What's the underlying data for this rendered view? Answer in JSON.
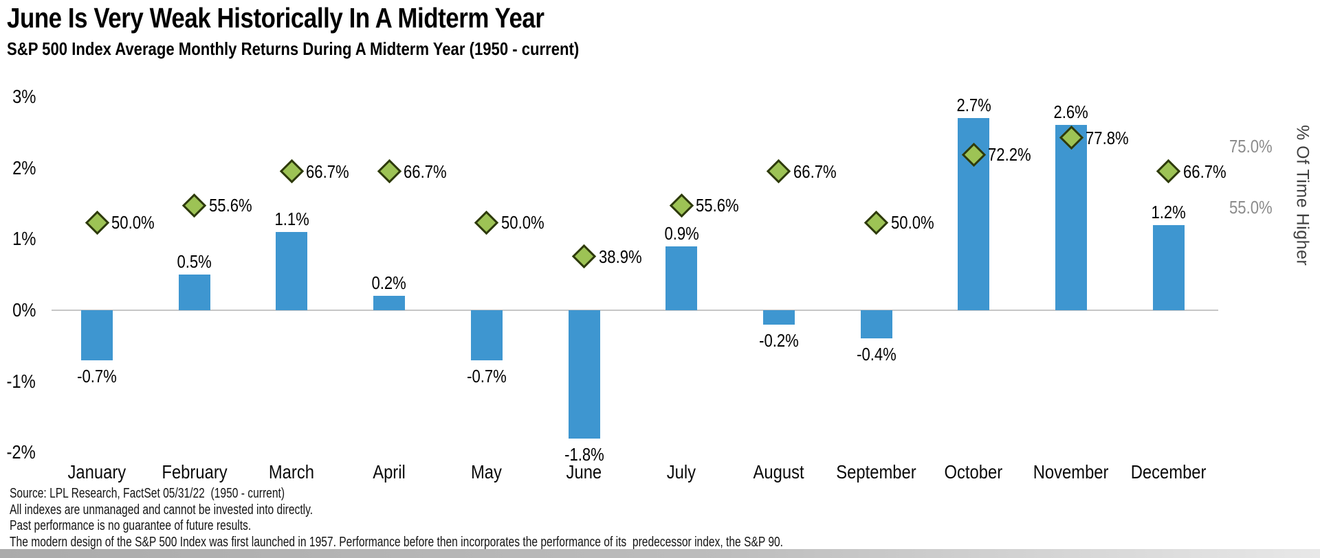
{
  "title": "June Is Very Weak Historically In A Midterm Year",
  "subtitle": "S&P 500 Index Average Monthly Returns During A Midterm Year (1950 - current)",
  "chart_data": {
    "type": "bar",
    "categories": [
      "January",
      "February",
      "March",
      "April",
      "May",
      "June",
      "July",
      "August",
      "September",
      "October",
      "November",
      "December"
    ],
    "series": [
      {
        "name": "Average monthly return",
        "type": "bar",
        "color": "#3E96D0",
        "values": [
          -0.7,
          0.5,
          1.1,
          0.2,
          -0.7,
          -1.8,
          0.9,
          -0.2,
          -0.4,
          2.7,
          2.6,
          1.2
        ],
        "labels": [
          "-0.7%",
          "0.5%",
          "1.1%",
          "0.2%",
          "-0.7%",
          "-1.8%",
          "0.9%",
          "-0.2%",
          "-0.4%",
          "2.7%",
          "2.6%",
          "1.2%"
        ]
      },
      {
        "name": "% Of Time Higher",
        "type": "scatter",
        "marker": "diamond",
        "color": "#9DC355",
        "marker_border_color": "#2E3A0D",
        "values": [
          50.0,
          55.6,
          66.7,
          66.7,
          50.0,
          38.9,
          55.6,
          66.7,
          50.0,
          72.2,
          77.8,
          66.7
        ],
        "labels": [
          "50.0%",
          "55.6%",
          "66.7%",
          "66.7%",
          "50.0%",
          "38.9%",
          "55.6%",
          "66.7%",
          "50.0%",
          "72.2%",
          "77.8%",
          "66.7%"
        ]
      }
    ],
    "left_axis": {
      "ticks": [
        "3%",
        "2%",
        "1%",
        "0%",
        "-1%",
        "-2%"
      ],
      "tick_values": [
        3,
        2,
        1,
        0,
        -1,
        -2
      ],
      "range": [
        -2,
        3
      ]
    },
    "right_axis": {
      "title": "% Of Time Higher",
      "ticks": [
        "75.0%",
        "55.0%"
      ],
      "tick_values": [
        75,
        55
      ],
      "tick_color": "#8C8C8C"
    },
    "grid": false,
    "legend": false
  },
  "footnotes": [
    "Source: LPL Research, FactSet 05/31/22  (1950 - current)",
    "All indexes are unmanaged and cannot be invested into directly.",
    "Past performance is no guarantee of future results.",
    "The modern design of the S&P 500 Index was first launched in 1957. Performance before then incorporates the performance of its  predecessor index, the S&P 90."
  ]
}
